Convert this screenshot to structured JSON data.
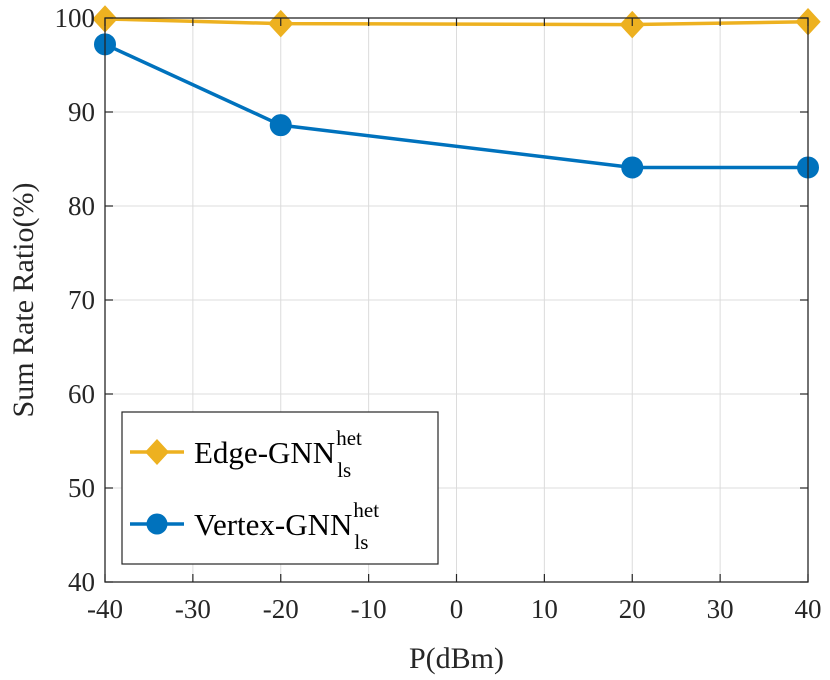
{
  "chart_data": {
    "type": "line",
    "title": "",
    "xlabel": "P(dBm)",
    "ylabel": "Sum Rate Ratio(%)",
    "xlim": [
      -40,
      40
    ],
    "ylim": [
      40,
      100
    ],
    "xticks": [
      -40,
      -30,
      -20,
      -10,
      0,
      10,
      20,
      30,
      40
    ],
    "yticks": [
      40,
      50,
      60,
      70,
      80,
      90,
      100
    ],
    "grid": true,
    "legend_position": "bottom-left",
    "series": [
      {
        "name": "Edge-GNN",
        "name_sup": "het",
        "name_sub": "ls",
        "color": "#EDB120",
        "marker": "diamond",
        "x": [
          -40,
          -20,
          20,
          40
        ],
        "y": [
          99.9,
          99.4,
          99.3,
          99.6
        ]
      },
      {
        "name": "Vertex-GNN",
        "name_sup": "het",
        "name_sub": "ls",
        "color": "#0072BD",
        "marker": "circle",
        "x": [
          -40,
          -20,
          20,
          40
        ],
        "y": [
          97.2,
          88.6,
          84.1,
          84.1
        ]
      }
    ]
  }
}
